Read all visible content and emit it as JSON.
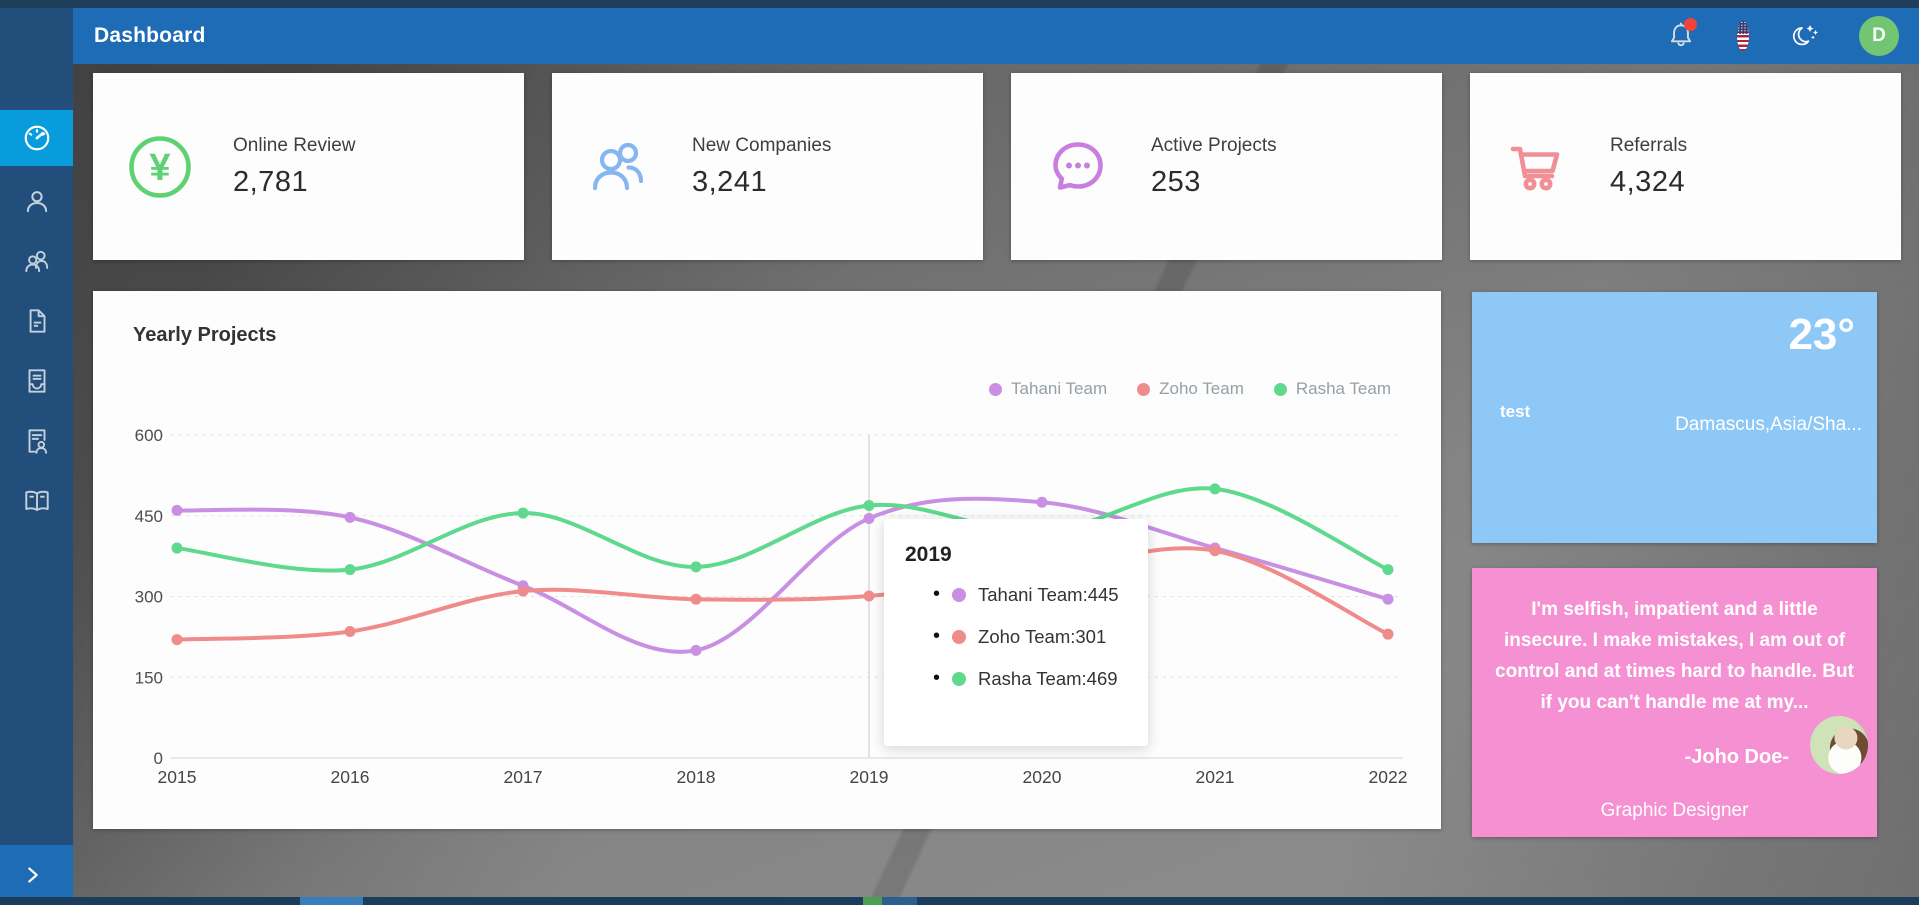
{
  "header": {
    "title": "Dashboard",
    "avatar_initial": "D",
    "icons": [
      "notification-bell-icon",
      "language-flag-us-icon",
      "dark-mode-toggle-icon",
      "user-avatar"
    ]
  },
  "sidebar": {
    "items": [
      {
        "icon": "dashboard-gauge-icon",
        "active": true
      },
      {
        "icon": "user-icon",
        "active": false
      },
      {
        "icon": "users-icon",
        "active": false
      },
      {
        "icon": "document-icon",
        "active": false
      },
      {
        "icon": "invoice-tray-icon",
        "active": false
      },
      {
        "icon": "contact-document-icon",
        "active": false
      },
      {
        "icon": "book-icon",
        "active": false
      }
    ],
    "expand_icon": "chevron-right-icon"
  },
  "stats": [
    {
      "label": "Online Review",
      "value": "2,781",
      "icon": "yen-currency-icon",
      "color": "#5ed273"
    },
    {
      "label": "New Companies",
      "value": "3,241",
      "icon": "group-icon",
      "color": "#85b6f2"
    },
    {
      "label": "Active Projects",
      "value": "253",
      "icon": "chat-bubble-icon",
      "color": "#c87fe0"
    },
    {
      "label": "Referrals",
      "value": "4,324",
      "icon": "shopping-cart-icon",
      "color": "#f08f96"
    }
  ],
  "chart_data": {
    "type": "line",
    "title": "Yearly Projects",
    "x": [
      2015,
      2016,
      2017,
      2018,
      2019,
      2020,
      2021,
      2022
    ],
    "series": [
      {
        "name": "Tahani Team",
        "color": "#c88fe3",
        "values": [
          460,
          447,
          320,
          200,
          445,
          475,
          390,
          295
        ]
      },
      {
        "name": "Zoho Team",
        "color": "#f08b8b",
        "values": [
          220,
          235,
          310,
          295,
          301,
          345,
          385,
          230
        ]
      },
      {
        "name": "Rasha Team",
        "color": "#5fd98d",
        "values": [
          390,
          350,
          455,
          355,
          469,
          420,
          500,
          350
        ]
      }
    ],
    "ylim": [
      0,
      600
    ],
    "yticks": [
      0,
      150,
      300,
      450,
      600
    ],
    "xlabel": "",
    "ylabel": "",
    "grid": "horizontal-dashed",
    "legend_position": "top-right",
    "tooltip": {
      "x": "2019",
      "items": [
        {
          "name": "Tahani Team",
          "value": 445,
          "color": "#c88fe3"
        },
        {
          "name": "Zoho Team",
          "value": 301,
          "color": "#f08b8b"
        },
        {
          "name": "Rasha Team",
          "value": 469,
          "color": "#5fd98d"
        }
      ]
    }
  },
  "weather": {
    "temperature": "23°",
    "label": "test",
    "location": "Damascus,Asia/Sha..."
  },
  "quote": {
    "text": "I'm selfish, impatient and a little insecure. I make mistakes, I am out of control and at times hard to handle. But if you can't handle me at my...",
    "author": "-Joho Doe-",
    "role": "Graphic Designer",
    "photo": "woman-portrait-photo"
  }
}
